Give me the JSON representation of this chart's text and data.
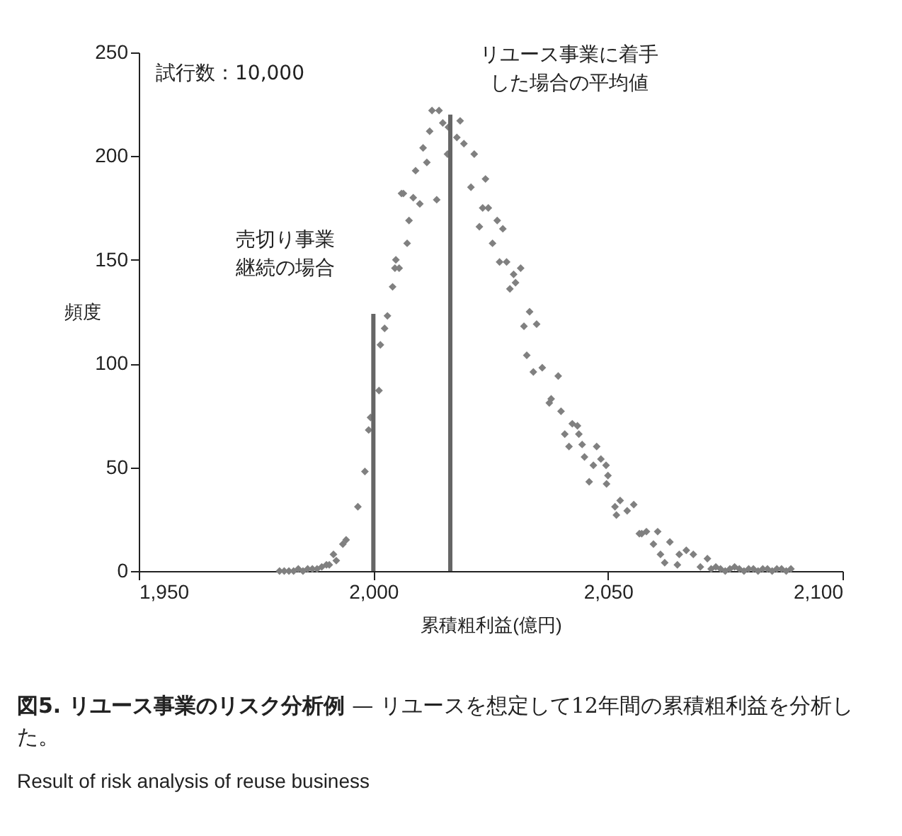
{
  "chart_data": {
    "type": "scatter",
    "title": "図5. リユース事業のリスク分析例",
    "subtitle": "— リユースを想定して12年間の累積粗利益を分析した。",
    "xlabel": "累積粗利益(億円)",
    "ylabel": "頻度",
    "x": [
      1980,
      1981,
      1982,
      1983,
      1984,
      1985,
      1986,
      1987,
      1988,
      1989,
      1990,
      1990.6,
      1991.5,
      1992.1,
      1993.5,
      1994.2,
      1996.7,
      1998.2,
      1999,
      1999.4,
      2001.2,
      2001.5,
      2002.4,
      2003,
      2004.1,
      2004.6,
      2004.8,
      2005.5,
      2006,
      2006.4,
      2007.2,
      2007.6,
      2008.5,
      2009,
      2009.9,
      2010.6,
      2011.4,
      2012,
      2012.5,
      2013.5,
      2014,
      2014.8,
      2015.8,
      2016,
      2017.8,
      2018.5,
      2019.3,
      2020.8,
      2021.5,
      2022.6,
      2023.3,
      2023.9,
      2024.5,
      2025.4,
      2026.4,
      2026.9,
      2027.6,
      2028.4,
      2029.1,
      2029.9,
      2030.3,
      2031.4,
      2032.1,
      2032.7,
      2033.3,
      2034.1,
      2034.8,
      2036,
      2037.5,
      2037.9,
      2039.4,
      2040,
      2040.8,
      2041.7,
      2042.4,
      2043.5,
      2043.8,
      2044.5,
      2045,
      2046,
      2046.9,
      2047.6,
      2048.5,
      2049.6,
      2049.7,
      2050,
      2051.5,
      2051.8,
      2052.6,
      2054.1,
      2055.5,
      2056.7,
      2057.2,
      2058.2,
      2059.7,
      2060.6,
      2061.2,
      2062.1,
      2063.2,
      2064.8,
      2065.2,
      2066.7,
      2068.2,
      2069.7,
      2071.2,
      2072,
      2073,
      2074,
      2075,
      2076,
      2077,
      2078,
      2079,
      2080,
      2081,
      2082,
      2083,
      2084,
      2085,
      2086,
      2087,
      2088,
      2089
    ],
    "series": [
      {
        "type": "bar",
        "color": "#666666",
        "x": [
          2000,
          2016.4
        ],
        "values": [
          124,
          220
        ]
      },
      {
        "color": "#808080",
        "values": [
          0,
          0,
          0,
          0,
          1,
          0,
          1,
          1,
          1,
          2,
          3,
          3,
          8,
          5,
          13,
          15,
          31,
          48,
          68,
          74,
          87,
          109,
          117,
          123,
          137,
          146,
          150,
          146,
          182,
          182,
          158,
          169,
          180,
          193,
          177,
          204,
          197,
          212,
          222,
          179,
          222,
          216,
          201,
          214,
          209,
          217,
          206,
          185,
          201,
          166,
          175,
          189,
          175,
          158,
          169,
          149,
          165,
          149,
          136,
          143,
          139,
          146,
          118,
          104,
          125,
          96,
          119,
          98,
          81,
          83,
          94,
          77,
          66,
          60,
          71,
          70,
          66,
          61,
          55,
          43,
          51,
          60,
          54,
          51,
          42,
          46,
          31,
          27,
          34,
          29,
          32,
          18,
          18,
          19,
          13,
          19,
          8,
          4,
          14,
          3,
          8,
          10,
          8,
          2,
          6,
          1,
          2,
          1,
          0,
          1,
          2,
          1,
          0,
          1,
          1,
          0,
          1,
          1,
          0,
          1,
          1,
          0,
          1
        ]
      }
    ],
    "marker": "diamond",
    "xlim": [
      1950,
      2100
    ],
    "xticks": [
      {
        "value": 1950,
        "label": "1,950"
      },
      {
        "value": 2000,
        "label": "2,000"
      },
      {
        "value": 2050,
        "label": "2,050"
      },
      {
        "value": 2100,
        "label": "2,100"
      }
    ],
    "ylim": [
      0,
      250
    ],
    "yticks": [
      0,
      50,
      100,
      150,
      200,
      250
    ],
    "annotations": [
      "試行数：10,000",
      "売切り事業継続の場合",
      "リユース事業に着手した場合の平均値",
      "Result of risk analysis of reuse business"
    ]
  }
}
